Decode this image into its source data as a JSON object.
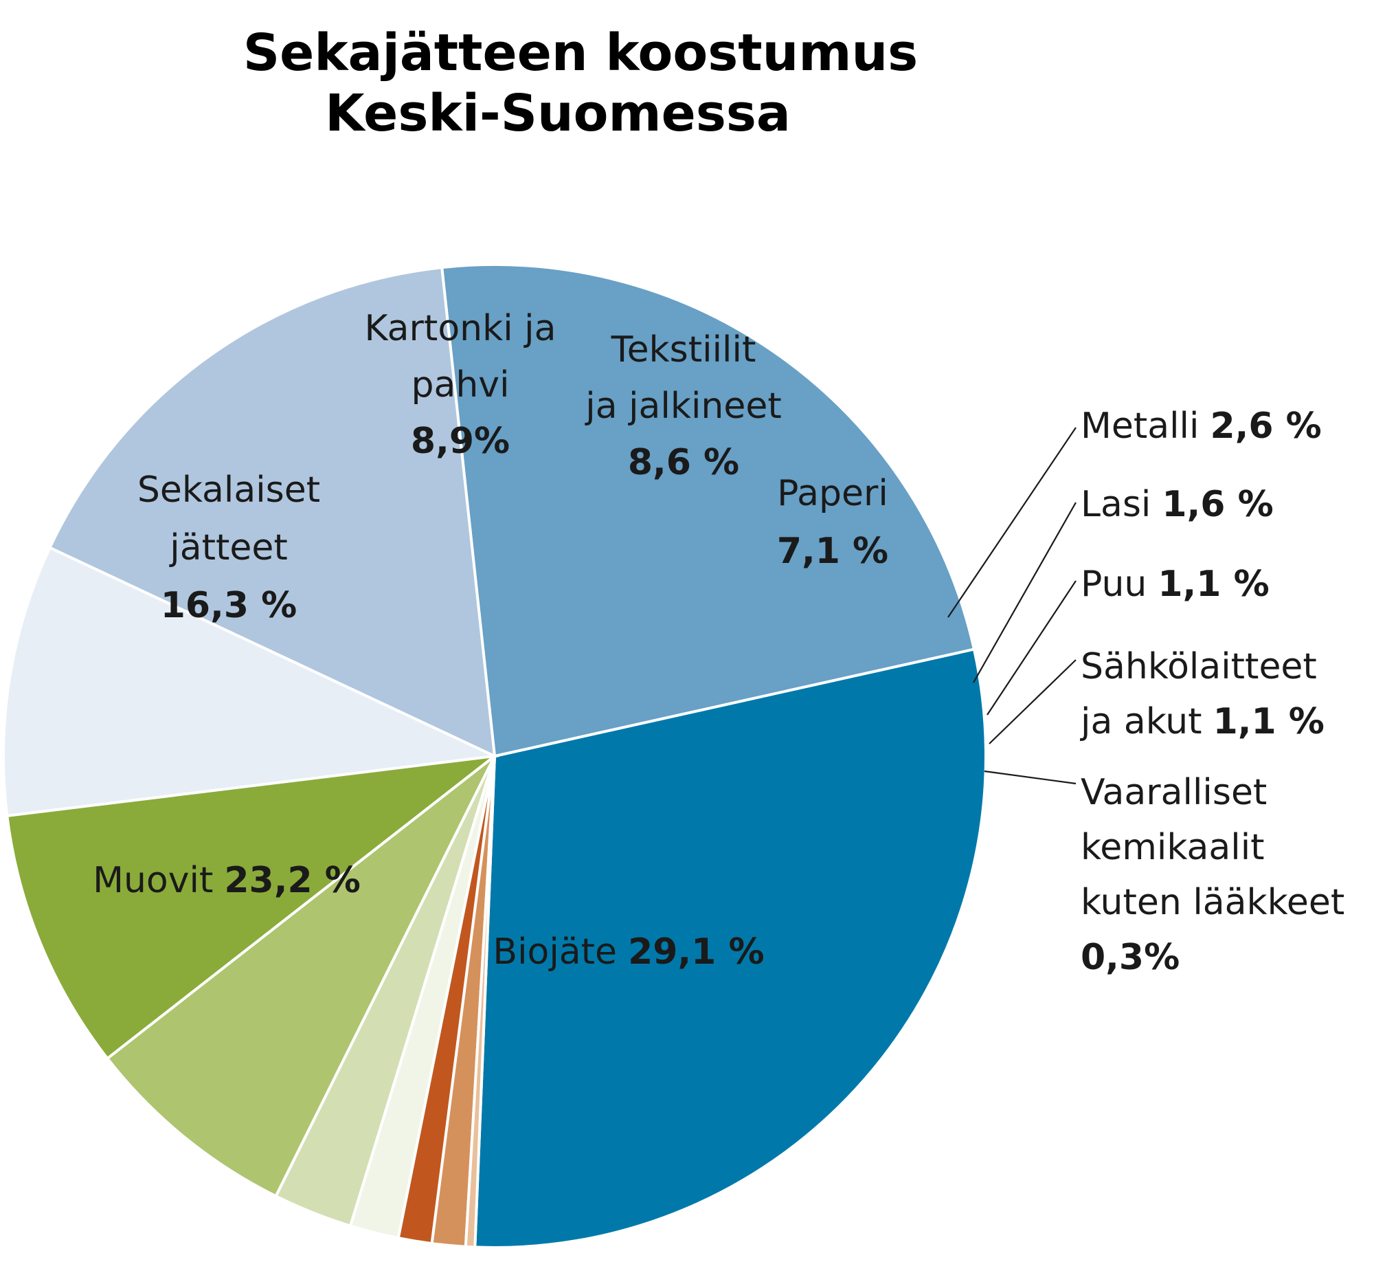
{
  "chart_data": {
    "type": "pie",
    "title": [
      "Sekajätteen koostumus",
      "Keski-Suomessa"
    ],
    "slices": [
      {
        "label_lines": [
          "Biojäte"
        ],
        "value_text": "29,1 %",
        "value": 29.1,
        "color": "#0079aa"
      },
      {
        "label_lines": [
          "Muovit"
        ],
        "value_text": "23,2 %",
        "value": 23.2,
        "color": "#68a0c6"
      },
      {
        "label_lines": [
          "Sekalaiset",
          "jätteet"
        ],
        "value_text": "16,3 %",
        "value": 16.3,
        "color": "#afc6de"
      },
      {
        "label_lines": [
          "Kartonki ja",
          "pahvi"
        ],
        "value_text": "8,9%",
        "value": 8.9,
        "color": "#e8eef6"
      },
      {
        "label_lines": [
          "Tekstiilit",
          "ja jalkineet"
        ],
        "value_text": "8,6 %",
        "value": 8.6,
        "color": "#8aab3a"
      },
      {
        "label_lines": [
          "Paperi"
        ],
        "value_text": "7,1 %",
        "value": 7.1,
        "color": "#aec46f"
      },
      {
        "label_lines": [
          "Metalli"
        ],
        "value_text": "2,6 %",
        "value": 2.6,
        "color": "#d3dfb3"
      },
      {
        "label_lines": [
          "Lasi"
        ],
        "value_text": "1,6 %",
        "value": 1.6,
        "color": "#f1f5e8"
      },
      {
        "label_lines": [
          "Puu"
        ],
        "value_text": "1,1 %",
        "value": 1.1,
        "color": "#c1571f"
      },
      {
        "label_lines": [
          "Sähkölaitteet",
          "ja akut"
        ],
        "value_text": "1,1 %",
        "value": 1.1,
        "color": "#d5915c"
      },
      {
        "label_lines": [
          "Vaaralliset",
          "kemikaalit",
          "kuten lääkkeet"
        ],
        "value_text": "0,3%",
        "value": 0.3,
        "color": "#e9c09c"
      }
    ]
  }
}
